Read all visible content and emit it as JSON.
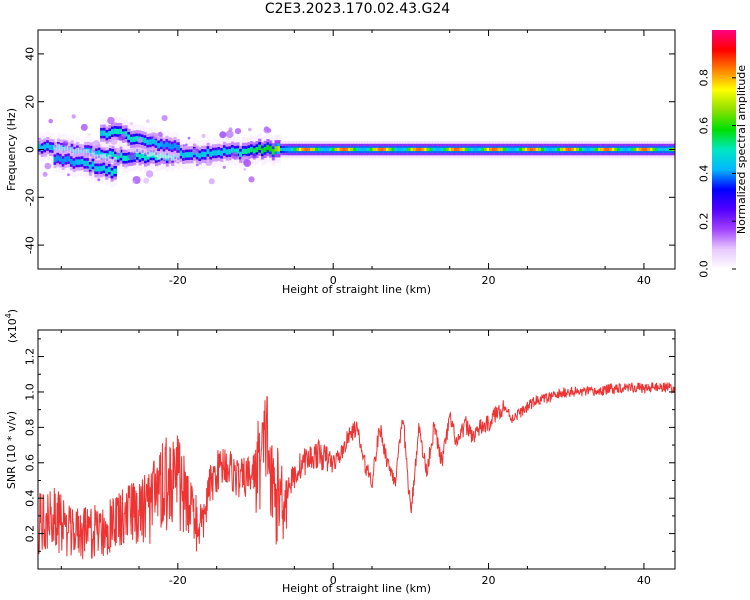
{
  "title": "C2E3.2023.170.02.43.G24",
  "chart_data": [
    {
      "type": "heatmap",
      "xlabel": "Height of straight line (km)",
      "ylabel": "Frequency (Hz)",
      "xlim": [
        -38,
        44
      ],
      "ylim": [
        -50,
        50
      ],
      "xticks": [
        -20,
        0,
        20,
        40
      ],
      "yticks": [
        40,
        20,
        0,
        -20,
        -40
      ],
      "colorbar": {
        "label": "Normalized spectral amplitude",
        "range": [
          0.0,
          1.0
        ],
        "ticks": [
          0.0,
          0.2,
          0.4,
          0.6,
          0.8
        ],
        "colors": [
          "#ffffff",
          "#e8c8ff",
          "#a040ff",
          "#5000ff",
          "#0000ff",
          "#00b8ff",
          "#00e8c0",
          "#00e000",
          "#90e000",
          "#ffff00",
          "#ff8000",
          "#ff0000",
          "#ff0080"
        ]
      },
      "ridges": [
        {
          "x": [
            -38,
            -35,
            -32,
            -30,
            -28,
            -26,
            -24,
            -22,
            -20,
            -18,
            -16,
            -14,
            -12,
            -10,
            -8,
            -6,
            44
          ],
          "y": [
            1,
            0,
            -1,
            -2,
            -3,
            -3,
            -3,
            -3,
            -2,
            -2,
            -1,
            -1,
            -1,
            0,
            0,
            0,
            0
          ],
          "amplitude": [
            0.45,
            0.4,
            0.4,
            0.45,
            0.5,
            0.5,
            0.5,
            0.5,
            0.45,
            0.45,
            0.45,
            0.45,
            0.5,
            0.55,
            0.6,
            0.85,
            0.85
          ]
        },
        {
          "x": [
            -36,
            -34,
            -32,
            -30,
            -28
          ],
          "y": [
            -4,
            -5,
            -6,
            -8,
            -10
          ],
          "amplitude": [
            0.4,
            0.4,
            0.45,
            0.45,
            0.5
          ]
        },
        {
          "x": [
            -30,
            -28,
            -26,
            -24,
            -22,
            -20
          ],
          "y": [
            7,
            7,
            5,
            3,
            2,
            1
          ],
          "amplitude": [
            0.45,
            0.5,
            0.5,
            0.45,
            0.4,
            0.4
          ]
        }
      ]
    },
    {
      "type": "line",
      "xlabel": "Height of straight line (km)",
      "ylabel": "SNR (10 * v/v)",
      "yscale_label": "(x10",
      "yscale_exponent": "4",
      "xlim": [
        -38,
        44
      ],
      "ylim": [
        0,
        1.35
      ],
      "xticks": [
        -20,
        0,
        20,
        40
      ],
      "yticks": [
        0.2,
        0.4,
        0.6,
        0.8,
        1.0,
        1.2
      ],
      "color": "#ee3333",
      "series": [
        {
          "x": [
            -38,
            -36,
            -34,
            -32,
            -30,
            -28,
            -26,
            -24,
            -22,
            -21,
            -20,
            -19,
            -18,
            -17,
            -16,
            -15,
            -14,
            -12,
            -10,
            -9,
            -8.5,
            -8,
            -7,
            -6,
            -4,
            -2,
            0,
            1,
            2,
            3,
            4,
            5,
            6,
            7,
            8,
            9,
            10,
            11,
            12,
            13,
            14,
            15,
            16,
            17,
            18,
            19,
            20,
            21,
            22,
            23,
            24,
            26,
            28,
            30,
            32,
            34,
            36,
            38,
            40,
            42,
            44
          ],
          "values": [
            0.2,
            0.25,
            0.15,
            0.12,
            0.15,
            0.2,
            0.25,
            0.3,
            0.45,
            0.6,
            0.55,
            0.35,
            0.25,
            0.2,
            0.45,
            0.55,
            0.6,
            0.5,
            0.55,
            0.65,
            0.8,
            0.45,
            0.4,
            0.45,
            0.6,
            0.65,
            0.6,
            0.65,
            0.75,
            0.8,
            0.6,
            0.5,
            0.8,
            0.6,
            0.5,
            0.85,
            0.3,
            0.8,
            0.55,
            0.8,
            0.6,
            0.85,
            0.7,
            0.82,
            0.75,
            0.8,
            0.82,
            0.88,
            0.92,
            0.85,
            0.88,
            0.95,
            0.97,
            1.0,
            1.0,
            1.0,
            1.02,
            1.03,
            1.02,
            1.03,
            1.02
          ]
        }
      ]
    }
  ]
}
